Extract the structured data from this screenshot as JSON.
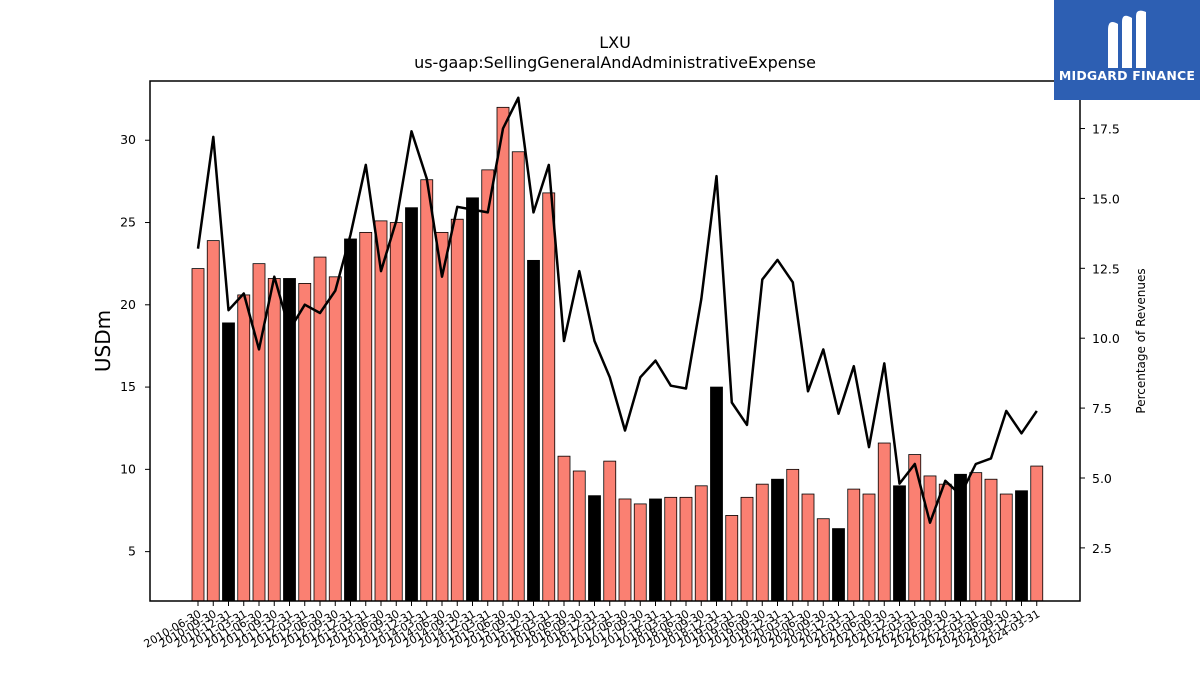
{
  "chart_data": {
    "type": "bar",
    "title": "LXU",
    "subtitle": "us-gaap:SellingGeneralAndAdministrativeExpense",
    "ylabel": "USDm",
    "ylabel_right": "Percentage of Revenues",
    "ylim": [
      2,
      33.6
    ],
    "ylim_right": [
      0.6,
      19.2
    ],
    "yticks": [
      5,
      10,
      15,
      20,
      25,
      30
    ],
    "yticks_right": [
      2.5,
      5.0,
      7.5,
      10.0,
      12.5,
      15.0,
      17.5
    ],
    "grid": false,
    "bar_colors": {
      "quarterly": "#fa8072",
      "annual": "#000000"
    },
    "line_color": "#000000",
    "categories": [
      "2010-06-30",
      "2010-09-30",
      "2010-12-31",
      "2011-03-31",
      "2011-06-30",
      "2011-09-30",
      "2011-12-31",
      "2012-03-31",
      "2012-06-30",
      "2012-09-30",
      "2012-12-31",
      "2013-03-31",
      "2013-06-30",
      "2013-09-30",
      "2013-12-31",
      "2014-03-31",
      "2014-06-30",
      "2014-09-30",
      "2014-12-31",
      "2015-03-31",
      "2015-06-30",
      "2015-09-30",
      "2015-12-31",
      "2016-03-31",
      "2016-06-30",
      "2016-09-30",
      "2016-12-31",
      "2017-03-31",
      "2017-06-30",
      "2017-09-30",
      "2017-12-31",
      "2018-03-31",
      "2018-06-30",
      "2018-09-30",
      "2018-12-31",
      "2019-03-31",
      "2019-06-30",
      "2019-09-30",
      "2019-12-31",
      "2020-03-31",
      "2020-06-30",
      "2020-09-30",
      "2020-12-31",
      "2021-03-31",
      "2021-06-30",
      "2021-09-30",
      "2021-12-31",
      "2022-03-31",
      "2022-06-30",
      "2022-09-30",
      "2022-12-31",
      "2023-03-31",
      "2023-06-30",
      "2023-09-30",
      "2023-12-31",
      "2024-03-31"
    ],
    "values": [
      22.2,
      23.9,
      18.9,
      20.6,
      22.5,
      21.6,
      21.6,
      21.3,
      22.9,
      21.7,
      24.0,
      24.4,
      25.1,
      25.0,
      25.9,
      27.6,
      24.4,
      25.2,
      26.5,
      28.2,
      32.0,
      29.3,
      22.7,
      26.8,
      10.8,
      9.9,
      8.4,
      10.5,
      8.2,
      7.9,
      8.2,
      8.3,
      8.3,
      9.0,
      15.0,
      7.2,
      8.3,
      9.1,
      9.4,
      10.0,
      8.5,
      7.0,
      6.4,
      8.8,
      8.5,
      11.6,
      9.0,
      10.9,
      9.6,
      9.1,
      9.7,
      9.8,
      9.4,
      8.5,
      8.7,
      10.2
    ],
    "annual": [
      false,
      false,
      true,
      false,
      false,
      false,
      true,
      false,
      false,
      false,
      true,
      false,
      false,
      false,
      true,
      false,
      false,
      false,
      true,
      false,
      false,
      false,
      true,
      false,
      false,
      false,
      true,
      false,
      false,
      false,
      true,
      false,
      false,
      false,
      true,
      false,
      false,
      false,
      true,
      false,
      false,
      false,
      true,
      false,
      false,
      false,
      true,
      false,
      false,
      false,
      true,
      false,
      false,
      false,
      true,
      false
    ],
    "pct_revenues": [
      13.2,
      17.2,
      11.0,
      11.6,
      9.6,
      12.2,
      10.3,
      11.2,
      10.9,
      11.7,
      13.7,
      16.2,
      12.4,
      14.2,
      17.4,
      15.7,
      12.2,
      14.7,
      14.6,
      14.5,
      17.5,
      18.6,
      14.5,
      16.2,
      9.9,
      12.4,
      9.9,
      8.6,
      6.7,
      8.6,
      9.2,
      8.3,
      8.2,
      11.4,
      15.8,
      7.7,
      6.9,
      12.1,
      12.8,
      12.0,
      8.1,
      9.6,
      7.3,
      9.0,
      6.1,
      9.1,
      4.8,
      5.5,
      3.4,
      4.9,
      4.4,
      5.5,
      5.7,
      7.4,
      6.6,
      7.4
    ]
  },
  "logo": {
    "text": "MIDGARD FINANCE"
  }
}
